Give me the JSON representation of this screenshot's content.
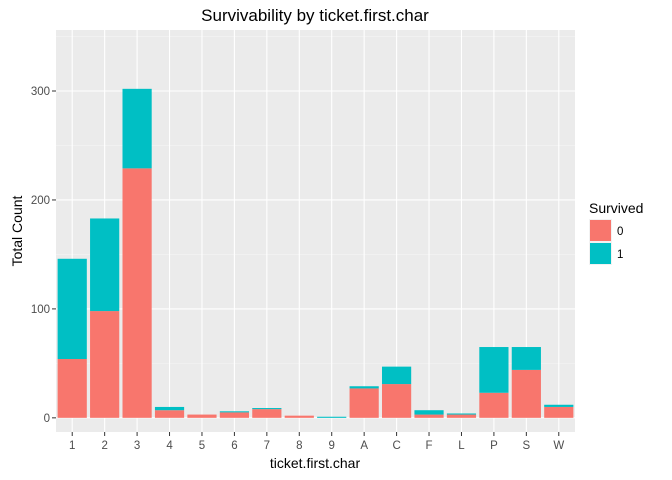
{
  "chart_data": {
    "type": "bar",
    "stacked": true,
    "title": "Survivability by ticket.first.char",
    "xlabel": "ticket.first.char",
    "ylabel": "Total Count",
    "categories": [
      "1",
      "2",
      "3",
      "4",
      "5",
      "6",
      "7",
      "8",
      "9",
      "A",
      "C",
      "F",
      "L",
      "P",
      "S",
      "W"
    ],
    "ylim": [
      -13,
      356
    ],
    "yticks": [
      0,
      100,
      200,
      300
    ],
    "grid": true,
    "legend": {
      "title": "Survived",
      "position": "right"
    },
    "series": [
      {
        "name": "0",
        "color": "#F8766D",
        "values": [
          54,
          98,
          229,
          7,
          3,
          5,
          8,
          2,
          0,
          27,
          31,
          3,
          3,
          23,
          44,
          10
        ]
      },
      {
        "name": "1",
        "color": "#00BFC4",
        "values": [
          92,
          85,
          73,
          3,
          0,
          1,
          1,
          0,
          1,
          2,
          16,
          4,
          1,
          42,
          21,
          2
        ]
      }
    ]
  }
}
